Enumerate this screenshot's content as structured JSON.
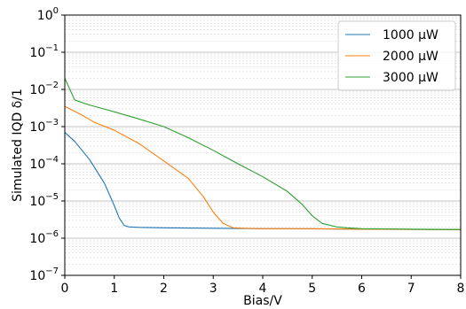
{
  "chart_data": {
    "type": "line",
    "title": "",
    "xlabel": "Bias/V",
    "ylabel": "Simulated IQD δ/1",
    "xscale": "linear",
    "yscale": "log",
    "xlim": [
      0,
      8
    ],
    "ylim": [
      1e-07,
      1
    ],
    "xticks": [
      0,
      1,
      2,
      3,
      4,
      5,
      6,
      7,
      8
    ],
    "xtick_labels": [
      "0",
      "1",
      "2",
      "3",
      "4",
      "5",
      "6",
      "7",
      "8"
    ],
    "yticks": [
      1e-07,
      1e-06,
      1e-05,
      0.0001,
      0.001,
      0.01,
      0.1,
      1
    ],
    "ytick_labels": [
      {
        "base": "10",
        "exp": "−7"
      },
      {
        "base": "10",
        "exp": "−6"
      },
      {
        "base": "10",
        "exp": "−5"
      },
      {
        "base": "10",
        "exp": "−4"
      },
      {
        "base": "10",
        "exp": "−3"
      },
      {
        "base": "10",
        "exp": "−2"
      },
      {
        "base": "10",
        "exp": "−1"
      },
      {
        "base": "10",
        "exp": "0"
      }
    ],
    "grid": true,
    "legend_position": "top-right",
    "series": [
      {
        "name": "1000 μW",
        "color": "#1f77b4",
        "points": [
          [
            0,
            0.0007
          ],
          [
            0.2,
            0.0004
          ],
          [
            0.5,
            0.00013
          ],
          [
            0.8,
            3e-05
          ],
          [
            1.0,
            7.5e-06
          ],
          [
            1.1,
            3.5e-06
          ],
          [
            1.2,
            2.2e-06
          ],
          [
            1.3,
            2e-06
          ],
          [
            1.5,
            1.95e-06
          ],
          [
            2,
            1.9e-06
          ],
          [
            3,
            1.85e-06
          ],
          [
            4,
            1.8e-06
          ],
          [
            5,
            1.78e-06
          ],
          [
            6,
            1.75e-06
          ],
          [
            7,
            1.72e-06
          ],
          [
            8,
            1.7e-06
          ]
        ]
      },
      {
        "name": "2000 μW",
        "color": "#ff7f0e",
        "points": [
          [
            0,
            0.0035
          ],
          [
            0.3,
            0.0022
          ],
          [
            0.6,
            0.0013
          ],
          [
            1.0,
            0.0008
          ],
          [
            1.5,
            0.00035
          ],
          [
            2.0,
            0.00012
          ],
          [
            2.5,
            4e-05
          ],
          [
            2.8,
            1.3e-05
          ],
          [
            3.0,
            5e-06
          ],
          [
            3.2,
            2.5e-06
          ],
          [
            3.4,
            1.9e-06
          ],
          [
            3.6,
            1.85e-06
          ],
          [
            4,
            1.8e-06
          ],
          [
            5,
            1.8e-06
          ],
          [
            6,
            1.75e-06
          ],
          [
            7,
            1.72e-06
          ],
          [
            8,
            1.7e-06
          ]
        ]
      },
      {
        "name": "3000 μW",
        "color": "#2ca02c",
        "points": [
          [
            0,
            0.02
          ],
          [
            0.2,
            0.0052
          ],
          [
            0.5,
            0.0038
          ],
          [
            1.0,
            0.0025
          ],
          [
            1.5,
            0.0016
          ],
          [
            2.0,
            0.001
          ],
          [
            2.5,
            0.0005
          ],
          [
            3.0,
            0.00023
          ],
          [
            3.5,
            0.0001
          ],
          [
            4.0,
            4.5e-05
          ],
          [
            4.5,
            1.8e-05
          ],
          [
            4.8,
            8e-06
          ],
          [
            5.0,
            4e-06
          ],
          [
            5.2,
            2.5e-06
          ],
          [
            5.5,
            2e-06
          ],
          [
            5.7,
            1.9e-06
          ],
          [
            6,
            1.8e-06
          ],
          [
            7,
            1.75e-06
          ],
          [
            8,
            1.7e-06
          ]
        ]
      }
    ]
  }
}
